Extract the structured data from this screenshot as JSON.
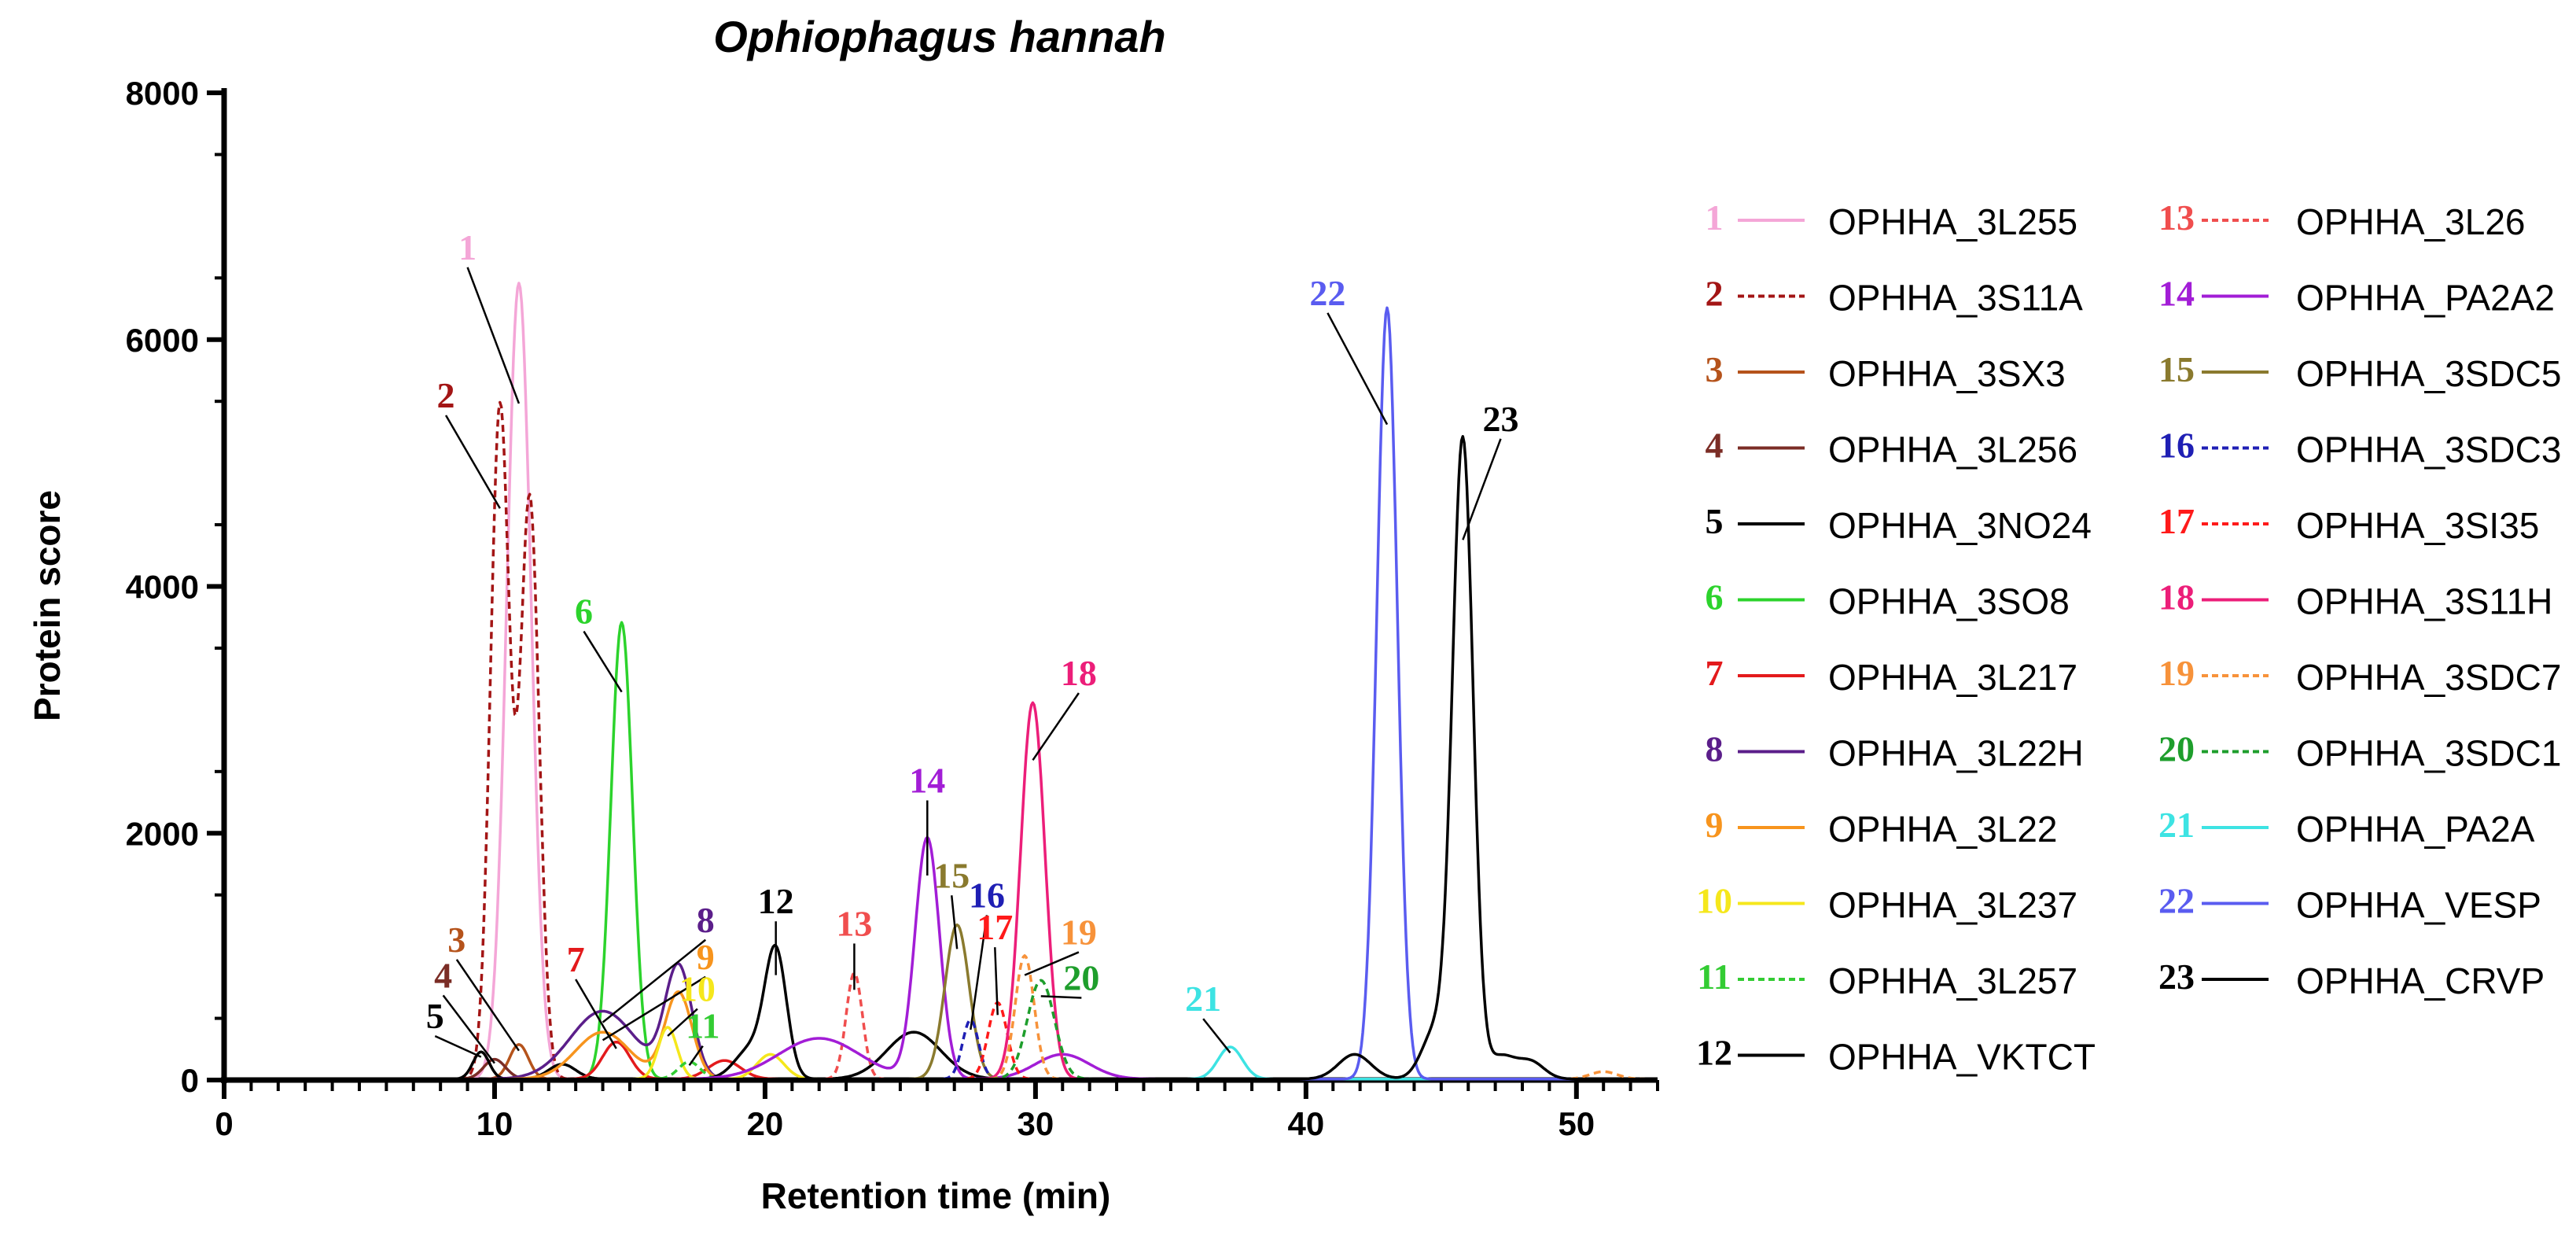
{
  "chart_data": {
    "type": "line",
    "title": "Ophiophagus hannah",
    "xlabel": "Retention time (min)",
    "ylabel": "Protein score",
    "xlim": [
      0,
      53
    ],
    "ylim": [
      0,
      8000
    ],
    "x_ticks": [
      "0",
      "10",
      "20",
      "30",
      "40",
      "50"
    ],
    "y_ticks": [
      "0",
      "2000",
      "4000",
      "6000",
      "8000"
    ],
    "grid": false,
    "legend_position": "right",
    "series": [
      {
        "id": "1",
        "name": "OPHHA_3L255",
        "color": "#f4a6d7",
        "dash": false,
        "peaks": [
          [
            10.9,
            6450,
            0.45
          ]
        ],
        "label_at": [
          9.0,
          6650
        ]
      },
      {
        "id": "2",
        "name": "OPHHA_3S11A",
        "color": "#a31515",
        "dash": true,
        "peaks": [
          [
            10.2,
            5450,
            0.35
          ],
          [
            11.3,
            4700,
            0.35
          ]
        ],
        "label_at": [
          8.2,
          5450
        ]
      },
      {
        "id": "3",
        "name": "OPHHA_3SX3",
        "color": "#b5531b",
        "dash": false,
        "peaks": [
          [
            10.9,
            280,
            0.35
          ]
        ],
        "label_at": [
          8.6,
          1040
        ]
      },
      {
        "id": "4",
        "name": "OPHHA_3L256",
        "color": "#7b2d26",
        "dash": false,
        "peaks": [
          [
            10.0,
            160,
            0.4
          ]
        ],
        "label_at": [
          8.1,
          750
        ]
      },
      {
        "id": "5",
        "name": "OPHHA_3NO24",
        "color": "#000000",
        "dash": false,
        "peaks": [
          [
            9.5,
            220,
            0.3
          ],
          [
            12.5,
            120,
            0.5
          ]
        ],
        "label_at": [
          7.8,
          420
        ]
      },
      {
        "id": "6",
        "name": "OPHHA_3SO8",
        "color": "#2cd32c",
        "dash": false,
        "peaks": [
          [
            14.7,
            3700,
            0.4
          ]
        ],
        "label_at": [
          13.3,
          3700
        ]
      },
      {
        "id": "7",
        "name": "OPHHA_3L217",
        "color": "#e31a1c",
        "dash": false,
        "peaks": [
          [
            14.5,
            300,
            0.5
          ],
          [
            18.5,
            150,
            0.6
          ]
        ],
        "label_at": [
          13.0,
          880
        ]
      },
      {
        "id": "8",
        "name": "OPHHA_3L22H",
        "color": "#5b1e8a",
        "dash": false,
        "peaks": [
          [
            14.0,
            550,
            1.2
          ],
          [
            16.8,
            900,
            0.5
          ]
        ],
        "label_at": [
          17.8,
          1200
        ]
      },
      {
        "id": "9",
        "name": "OPHHA_3L22",
        "color": "#f7941d",
        "dash": false,
        "peaks": [
          [
            14.0,
            380,
            1.0
          ],
          [
            16.8,
            700,
            0.5
          ]
        ],
        "label_at": [
          17.8,
          900
        ]
      },
      {
        "id": "10",
        "name": "OPHHA_3L237",
        "color": "#f5e71c",
        "dash": false,
        "peaks": [
          [
            16.4,
            420,
            0.35
          ],
          [
            20.2,
            200,
            0.5
          ]
        ],
        "label_at": [
          17.5,
          640
        ]
      },
      {
        "id": "11",
        "name": "OPHHA_3L257",
        "color": "#33cc33",
        "dash": true,
        "peaks": [
          [
            17.2,
            140,
            0.4
          ]
        ],
        "label_at": [
          17.7,
          340
        ]
      },
      {
        "id": "12",
        "name": "OPHHA_VKTCT",
        "color": "#000000",
        "dash": false,
        "peaks": [
          [
            20.4,
            1000,
            0.4
          ],
          [
            19.5,
            250,
            0.6
          ],
          [
            25.5,
            380,
            1.0
          ]
        ],
        "label_at": [
          20.4,
          1350
        ]
      },
      {
        "id": "13",
        "name": "OPHHA_3L26",
        "color": "#f04e4e",
        "dash": true,
        "peaks": [
          [
            23.3,
            860,
            0.3
          ]
        ],
        "label_at": [
          23.3,
          1170
        ]
      },
      {
        "id": "14",
        "name": "OPHHA_PA2A2",
        "color": "#a21dd6",
        "dash": false,
        "peaks": [
          [
            26.0,
            1950,
            0.45
          ],
          [
            22.0,
            330,
            1.5
          ],
          [
            31.0,
            200,
            1.0
          ]
        ],
        "label_at": [
          26.0,
          2330
        ]
      },
      {
        "id": "15",
        "name": "OPHHA_3SDC5",
        "color": "#8a7a2e",
        "dash": false,
        "peaks": [
          [
            27.1,
            1250,
            0.45
          ]
        ],
        "label_at": [
          26.9,
          1560
        ]
      },
      {
        "id": "16",
        "name": "OPHHA_3SDC3",
        "color": "#1f1fb4",
        "dash": true,
        "peaks": [
          [
            27.6,
            480,
            0.3
          ]
        ],
        "label_at": [
          28.2,
          1400
        ]
      },
      {
        "id": "17",
        "name": "OPHHA_3SI35",
        "color": "#ff1a1a",
        "dash": true,
        "peaks": [
          [
            28.6,
            620,
            0.35
          ]
        ],
        "label_at": [
          28.5,
          1140
        ]
      },
      {
        "id": "18",
        "name": "OPHHA_3S11H",
        "color": "#ec1e79",
        "dash": false,
        "peaks": [
          [
            29.9,
            3050,
            0.45
          ]
        ],
        "label_at": [
          31.6,
          3200
        ]
      },
      {
        "id": "19",
        "name": "OPHHA_3SDC7",
        "color": "#f7923a",
        "dash": true,
        "peaks": [
          [
            29.6,
            1000,
            0.35
          ],
          [
            51.0,
            60,
            0.5
          ]
        ],
        "label_at": [
          31.6,
          1100
        ]
      },
      {
        "id": "20",
        "name": "OPHHA_3SDC1",
        "color": "#1e9e2c",
        "dash": true,
        "peaks": [
          [
            30.2,
            800,
            0.5
          ]
        ],
        "label_at": [
          31.7,
          730
        ]
      },
      {
        "id": "21",
        "name": "OPHHA_PA2A",
        "color": "#3de3e3",
        "dash": false,
        "peaks": [
          [
            37.2,
            260,
            0.45
          ]
        ],
        "label_at": [
          36.2,
          560
        ]
      },
      {
        "id": "22",
        "name": "OPHHA_VESP",
        "color": "#5a5cf0",
        "dash": false,
        "peaks": [
          [
            43.0,
            6250,
            0.38
          ]
        ],
        "label_at": [
          40.8,
          6280
        ]
      },
      {
        "id": "23",
        "name": "OPHHA_CRVP",
        "color": "#000000",
        "dash": false,
        "peaks": [
          [
            45.8,
            5150,
            0.38
          ],
          [
            44.8,
            400,
            0.5
          ],
          [
            41.8,
            200,
            0.6
          ],
          [
            47.2,
            180,
            0.5
          ],
          [
            48.3,
            140,
            0.5
          ]
        ],
        "label_at": [
          47.2,
          5260
        ]
      }
    ]
  }
}
